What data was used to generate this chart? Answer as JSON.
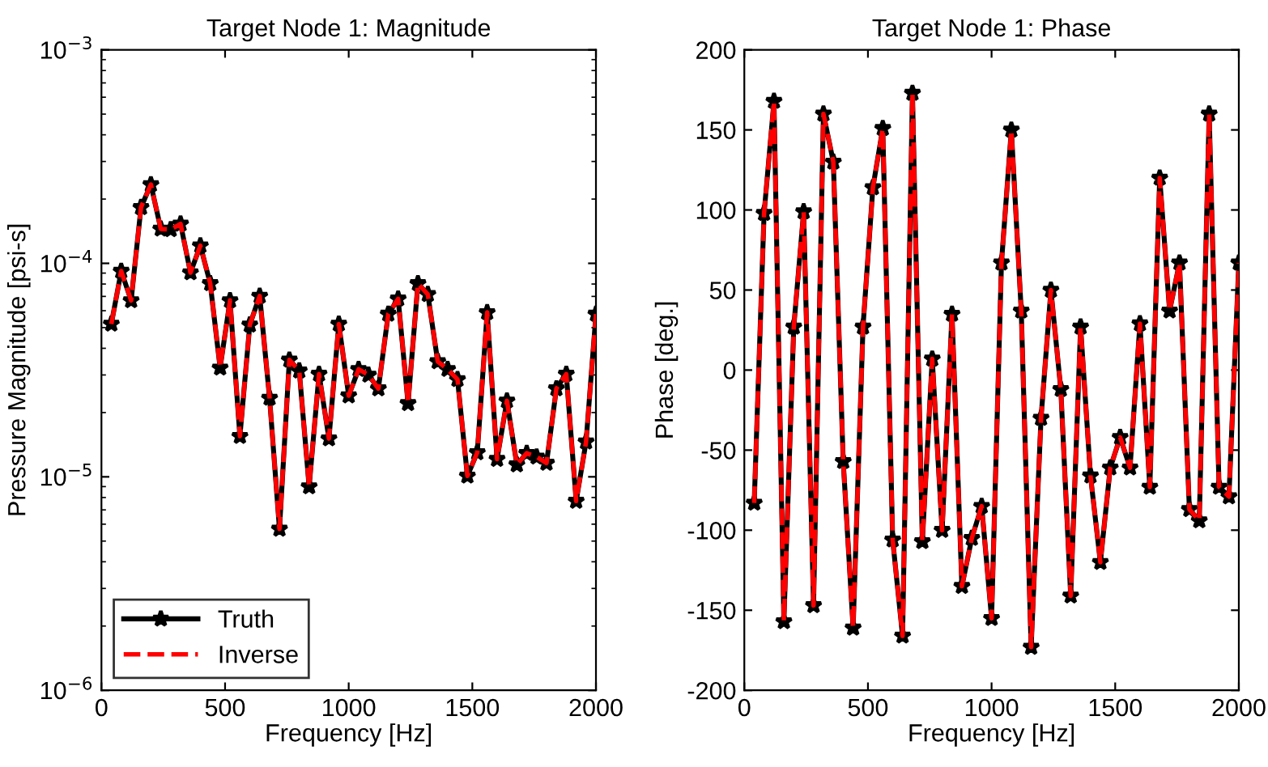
{
  "chart_data": [
    {
      "type": "line",
      "title": "Target Node 1: Magnitude",
      "xlabel": "Frequency [Hz]",
      "ylabel": "Pressure Magnitude [psi-s]",
      "x": [
        40,
        80,
        120,
        160,
        200,
        240,
        280,
        320,
        360,
        400,
        440,
        480,
        520,
        560,
        600,
        640,
        680,
        720,
        760,
        800,
        840,
        880,
        920,
        960,
        1000,
        1040,
        1080,
        1120,
        1160,
        1200,
        1240,
        1280,
        1320,
        1360,
        1400,
        1440,
        1480,
        1520,
        1560,
        1600,
        1640,
        1680,
        1720,
        1760,
        1800,
        1840,
        1880,
        1920,
        1960,
        2000
      ],
      "series": [
        {
          "name": "Truth",
          "color": "#000000",
          "line_style": "solid",
          "marker": "star",
          "values": [
            5.2e-05,
            9.2e-05,
            6.7e-05,
            0.000183,
            0.000234,
            0.000145,
            0.000144,
            0.000153,
            9.05e-05,
            0.000121,
            8.05e-05,
            3.24e-05,
            6.7e-05,
            1.55e-05,
            5.15e-05,
            7.03e-05,
            2.34e-05,
            5.7e-06,
            3.53e-05,
            3.14e-05,
            9e-06,
            3.03e-05,
            1.51e-05,
            5.2e-05,
            2.4e-05,
            3.19e-05,
            3e-05,
            2.59e-05,
            5.79e-05,
            6.82e-05,
            2.21e-05,
            8.05e-05,
            7.16e-05,
            3.47e-05,
            3.19e-05,
            2.86e-05,
            1.01e-05,
            1.3e-05,
            5.89e-05,
            1.21e-05,
            2.27e-05,
            1.14e-05,
            1.29e-05,
            1.24e-05,
            1.16e-05,
            2.59e-05,
            3.03e-05,
            7.7e-06,
            1.46e-05,
            5.79e-05
          ]
        },
        {
          "name": "Inverse",
          "color": "#ff0000",
          "line_style": "dashed",
          "marker": "none",
          "values": [
            5.2e-05,
            9.2e-05,
            6.7e-05,
            0.000183,
            0.000234,
            0.000145,
            0.000144,
            0.000153,
            9.05e-05,
            0.000121,
            8.05e-05,
            3.24e-05,
            6.7e-05,
            1.55e-05,
            5.15e-05,
            7.03e-05,
            2.34e-05,
            5.7e-06,
            3.53e-05,
            3.14e-05,
            9e-06,
            3.03e-05,
            1.51e-05,
            5.2e-05,
            2.4e-05,
            3.19e-05,
            3e-05,
            2.59e-05,
            5.79e-05,
            6.82e-05,
            2.21e-05,
            8.05e-05,
            7.16e-05,
            3.47e-05,
            3.19e-05,
            2.86e-05,
            1.01e-05,
            1.3e-05,
            5.89e-05,
            1.21e-05,
            2.27e-05,
            1.14e-05,
            1.29e-05,
            1.24e-05,
            1.16e-05,
            2.59e-05,
            3.03e-05,
            7.7e-06,
            1.46e-05,
            5.79e-05
          ]
        }
      ],
      "log": true,
      "xlim": [
        0,
        2000
      ],
      "xticks": [
        0,
        500,
        1000,
        1500,
        2000
      ],
      "ylim": [
        1e-06,
        0.001
      ],
      "yticks": [
        {
          "value": 1e-06,
          "label": "10$^{−6}$"
        },
        {
          "value": 1e-05,
          "label": "10$^{−5}$"
        },
        {
          "value": 0.0001,
          "label": "10$^{−4}$"
        },
        {
          "value": 0.001,
          "label": "10$^{−3}$"
        }
      ],
      "grid": false,
      "legend": "bottom left"
    },
    {
      "type": "line",
      "title": "Target Node 1: Phase",
      "xlabel": "Frequency [Hz]",
      "ylabel": "Phase [deg.]",
      "x": [
        40,
        80,
        120,
        160,
        200,
        240,
        280,
        320,
        360,
        400,
        440,
        480,
        520,
        560,
        600,
        640,
        680,
        720,
        760,
        800,
        840,
        880,
        920,
        960,
        1000,
        1040,
        1080,
        1120,
        1160,
        1200,
        1240,
        1280,
        1320,
        1360,
        1400,
        1440,
        1480,
        1520,
        1560,
        1600,
        1640,
        1680,
        1720,
        1760,
        1800,
        1840,
        1880,
        1920,
        1960,
        2000
      ],
      "series": [
        {
          "color": "#000000",
          "line_style": "solid",
          "marker": "star",
          "values": [
            -83,
            98,
            168,
            -157,
            27,
            99,
            -147,
            160,
            130,
            -57,
            -161,
            27,
            114,
            151,
            -106,
            -166,
            173,
            -107,
            7,
            -100,
            35,
            -135,
            -105,
            -85,
            -155,
            67,
            150,
            37,
            -173,
            -30,
            50,
            -12,
            -141,
            27,
            -66,
            -120,
            -61,
            -42,
            -61,
            29,
            -73,
            120,
            37,
            67,
            -87,
            -94,
            160,
            -73,
            -79,
            67
          ]
        },
        {
          "color": "#ff0000",
          "line_style": "dashed",
          "marker": "none",
          "values": [
            -83,
            98,
            168,
            -157,
            27,
            99,
            -147,
            160,
            130,
            -57,
            -161,
            27,
            114,
            151,
            -106,
            -166,
            173,
            -107,
            7,
            -100,
            35,
            -135,
            -105,
            -85,
            -155,
            67,
            150,
            37,
            -173,
            -30,
            50,
            -12,
            -141,
            27,
            -66,
            -120,
            -61,
            -42,
            -61,
            29,
            -73,
            120,
            37,
            67,
            -87,
            -94,
            160,
            -73,
            -79,
            67
          ]
        }
      ],
      "xlim": [
        0,
        2000
      ],
      "xticks": [
        0,
        500,
        1000,
        1500,
        2000
      ],
      "ylim": [
        -200,
        200
      ],
      "yticks": [
        -200,
        -150,
        -100,
        -50,
        0,
        50,
        100,
        150,
        200
      ],
      "grid": false
    }
  ]
}
